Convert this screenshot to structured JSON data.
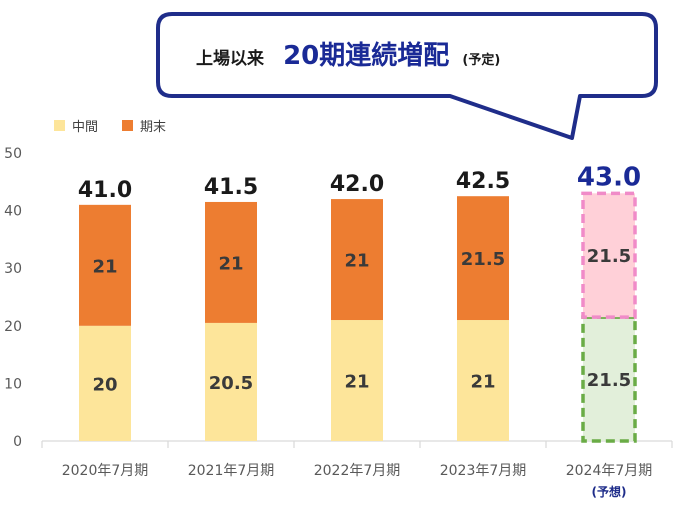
{
  "callout": {
    "prefix": "上場以来",
    "highlight": "20期連続増配",
    "suffix": "(予定)"
  },
  "chart_data": {
    "type": "bar",
    "stacked": true,
    "categories": [
      "2020年7月期",
      "2021年7月期",
      "2022年7月期",
      "2023年7月期",
      "2024年7月期"
    ],
    "category_notes": [
      "",
      "",
      "",
      "",
      "(予想)"
    ],
    "series": [
      {
        "name": "中間",
        "values": [
          20,
          20.5,
          21,
          21,
          21.5
        ],
        "labels": [
          "20",
          "20.5",
          "21",
          "21",
          "21.5"
        ],
        "color": "#fde59a"
      },
      {
        "name": "期末",
        "values": [
          21,
          21,
          21,
          21.5,
          21.5
        ],
        "labels": [
          "21",
          "21",
          "21",
          "21.5",
          "21.5"
        ],
        "color": "#ed7d31"
      }
    ],
    "totals": [
      "41.0",
      "41.5",
      "42.0",
      "42.5",
      "43.0"
    ],
    "forecast_index": 4,
    "forecast_colors": {
      "interim_fill": "#e2efda",
      "interim_border": "#6aac46",
      "final_fill": "#ffd0d8",
      "final_border": "#f08bc8"
    },
    "ylim": [
      0,
      50
    ],
    "yticks": [
      0,
      10,
      20,
      30,
      40,
      50
    ],
    "grid": false,
    "legend_position": "top-left"
  }
}
